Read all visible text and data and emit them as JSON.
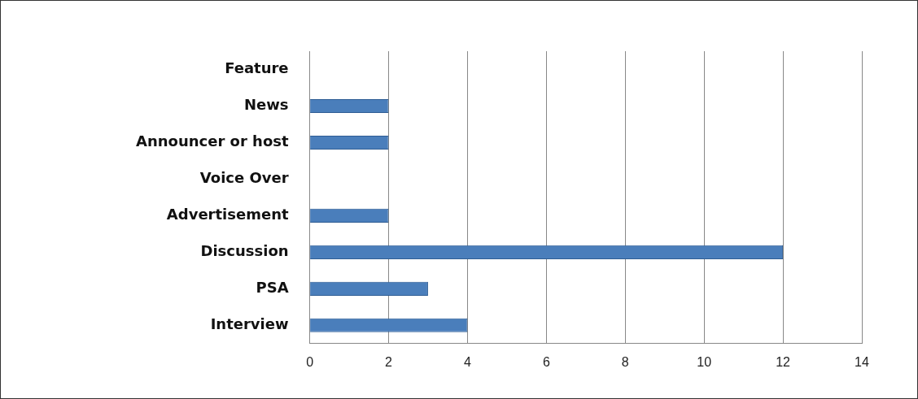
{
  "chart_data": {
    "type": "bar",
    "orientation": "horizontal",
    "categories": [
      "Feature",
      "News",
      "Announcer or host",
      "Voice Over",
      "Advertisement",
      "Discussion",
      "PSA",
      "Interview"
    ],
    "values": [
      0,
      2,
      2,
      0,
      2,
      12,
      3,
      4
    ],
    "color": "#4a7ebb",
    "xlim": [
      0,
      14
    ],
    "xticks": [
      0,
      2,
      4,
      6,
      8,
      10,
      12,
      14
    ],
    "grid": "x",
    "legend": false
  }
}
